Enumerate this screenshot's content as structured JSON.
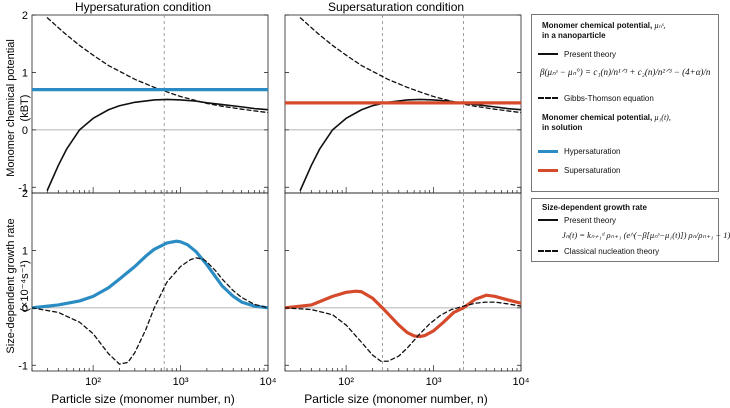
{
  "panels": {
    "top_left_title": "Hypersaturation condition",
    "top_right_title": "Supersaturation condition",
    "xlabel": "Particle size (monomer number, n)",
    "ylabel_top": "Monomer chemical potential",
    "ylabel_top_unit": "(kBT)",
    "ylabel_bottom": "Size-dependent growth rate",
    "ylabel_bottom_unit": "(×10⁻⁴s⁻¹)",
    "x_ticks": [
      "10²",
      "10³",
      "10⁴"
    ],
    "y_ticks": [
      "2",
      "1",
      "0",
      "-1"
    ]
  },
  "legend_top": {
    "header1": "Monomer chemical potential,",
    "header1_symbol": "μₙˢ,",
    "header1_line2": "in a nanoparticle",
    "item_present": "Present theory",
    "formula": "β(μₙˢ − μₙ°) = c₁(n)/n¹ᐟ³ + c₂(n)/n²ᐟ³ − (4+α)/n",
    "item_gibbs": "Gibbs-Thomson equation",
    "header2": "Monomer chemical potential,",
    "header2_symbol": "μ₁(t),",
    "header2_line2": "in solution",
    "item_hyper": "Hypersaturation",
    "item_super": "Supersaturation"
  },
  "legend_bottom": {
    "header": "Size-dependent growth rate",
    "item_present": "Present theory",
    "formula": "Jₙ(t) = kₙ₊₁ᵈ ρₙ₊₁ (e^(−β[μₙˢ−μ₁(t)]) ρₙ/ρₙ₊₁ − 1)",
    "item_classical": "Classical nucleation theory"
  },
  "colors": {
    "hyper": "#2b8cc4",
    "super": "#d64a2c",
    "curve": "#111111",
    "grid": "#888888"
  },
  "chart_data": [
    {
      "type": "line",
      "title": "Hypersaturation condition",
      "xscale": "log",
      "xlim": [
        20,
        10000
      ],
      "ylim": [
        -1.1,
        2
      ],
      "ylabel": "Monomer chemical potential (kBT)",
      "vlines": [
        650
      ],
      "series": [
        {
          "name": "Present theory",
          "style": "solid",
          "x": [
            30,
            40,
            50,
            70,
            100,
            150,
            200,
            300,
            500,
            700,
            1000,
            1500,
            2000,
            3000,
            5000,
            7000,
            10000
          ],
          "y": [
            -1.05,
            -0.62,
            -0.33,
            0.0,
            0.2,
            0.35,
            0.42,
            0.48,
            0.52,
            0.53,
            0.52,
            0.5,
            0.47,
            0.44,
            0.4,
            0.37,
            0.35
          ]
        },
        {
          "name": "Gibbs-Thomson equation",
          "style": "dashed",
          "x": [
            30,
            40,
            50,
            70,
            100,
            150,
            200,
            300,
            500,
            700,
            1000,
            1500,
            2000,
            3000,
            5000,
            7000,
            10000
          ],
          "y": [
            1.95,
            1.78,
            1.65,
            1.47,
            1.3,
            1.12,
            1.02,
            0.88,
            0.74,
            0.66,
            0.58,
            0.51,
            0.46,
            0.41,
            0.36,
            0.33,
            0.3
          ]
        },
        {
          "name": "Hypersaturation",
          "style": "solid-thick",
          "x": [
            20,
            10000
          ],
          "y": [
            0.7,
            0.7
          ]
        }
      ]
    },
    {
      "type": "line",
      "title": "Supersaturation condition",
      "xscale": "log",
      "xlim": [
        20,
        10000
      ],
      "ylim": [
        -1.1,
        2
      ],
      "vlines": [
        260,
        2200
      ],
      "series": [
        {
          "name": "Present theory",
          "style": "solid",
          "x": [
            30,
            40,
            50,
            70,
            100,
            150,
            200,
            300,
            500,
            700,
            1000,
            1500,
            2000,
            3000,
            5000,
            7000,
            10000
          ],
          "y": [
            -1.05,
            -0.62,
            -0.33,
            0.0,
            0.2,
            0.35,
            0.42,
            0.48,
            0.52,
            0.53,
            0.52,
            0.5,
            0.47,
            0.44,
            0.4,
            0.37,
            0.35
          ]
        },
        {
          "name": "Gibbs-Thomson equation",
          "style": "dashed",
          "x": [
            30,
            40,
            50,
            70,
            100,
            150,
            200,
            300,
            500,
            700,
            1000,
            1500,
            2000,
            3000,
            5000,
            7000,
            10000
          ],
          "y": [
            1.95,
            1.78,
            1.65,
            1.47,
            1.3,
            1.12,
            1.02,
            0.88,
            0.74,
            0.66,
            0.58,
            0.51,
            0.46,
            0.41,
            0.36,
            0.33,
            0.3
          ]
        },
        {
          "name": "Supersaturation",
          "style": "solid-thick",
          "x": [
            20,
            10000
          ],
          "y": [
            0.47,
            0.47
          ]
        }
      ]
    },
    {
      "type": "line",
      "xscale": "log",
      "xlim": [
        20,
        10000
      ],
      "ylim": [
        -1.1,
        2
      ],
      "ylabel": "Size-dependent growth rate (×10⁻⁴s⁻¹)",
      "xlabel": "Particle size (monomer number, n)",
      "vlines": [
        650
      ],
      "series": [
        {
          "name": "Hypersaturation",
          "style": "solid-thick",
          "x": [
            20,
            40,
            70,
            100,
            150,
            200,
            300,
            400,
            500,
            700,
            900,
            1000,
            1200,
            1500,
            2000,
            3000,
            4000,
            5000,
            7000,
            10000
          ],
          "y": [
            0.0,
            0.05,
            0.12,
            0.2,
            0.35,
            0.5,
            0.72,
            0.9,
            1.02,
            1.13,
            1.16,
            1.15,
            1.1,
            0.98,
            0.75,
            0.38,
            0.2,
            0.1,
            0.03,
            0.0
          ]
        },
        {
          "name": "Classical nucleation theory",
          "style": "dashed",
          "x": [
            20,
            40,
            70,
            100,
            150,
            200,
            250,
            300,
            400,
            500,
            700,
            1000,
            1300,
            1500,
            1800,
            2000,
            2500,
            3000,
            4000,
            5000,
            7000,
            10000
          ],
          "y": [
            0.0,
            -0.08,
            -0.25,
            -0.45,
            -0.8,
            -0.98,
            -0.95,
            -0.78,
            -0.38,
            0.0,
            0.45,
            0.72,
            0.84,
            0.87,
            0.85,
            0.8,
            0.65,
            0.5,
            0.3,
            0.18,
            0.06,
            0.0
          ]
        }
      ]
    },
    {
      "type": "line",
      "xscale": "log",
      "xlim": [
        20,
        10000
      ],
      "ylim": [
        -1.1,
        2
      ],
      "xlabel": "Particle size (monomer number, n)",
      "vlines": [
        260,
        2200
      ],
      "series": [
        {
          "name": "Supersaturation",
          "style": "solid-thick",
          "x": [
            20,
            40,
            70,
            100,
            130,
            150,
            200,
            260,
            300,
            400,
            500,
            600,
            700,
            800,
            1000,
            1300,
            1700,
            2200,
            3000,
            4000,
            5000,
            7000,
            10000
          ],
          "y": [
            0.0,
            0.05,
            0.2,
            0.27,
            0.29,
            0.28,
            0.17,
            0.0,
            -0.1,
            -0.3,
            -0.43,
            -0.49,
            -0.5,
            -0.48,
            -0.4,
            -0.25,
            -0.08,
            0.0,
            0.15,
            0.22,
            0.2,
            0.14,
            0.08
          ]
        },
        {
          "name": "Classical nucleation theory",
          "style": "dashed",
          "x": [
            20,
            40,
            70,
            100,
            150,
            200,
            250,
            300,
            400,
            500,
            700,
            900,
            1200,
            1600,
            2200,
            3000,
            4000,
            5000,
            7000,
            10000
          ],
          "y": [
            0.0,
            -0.03,
            -0.12,
            -0.3,
            -0.6,
            -0.82,
            -0.93,
            -0.93,
            -0.84,
            -0.7,
            -0.45,
            -0.28,
            -0.13,
            -0.03,
            0.03,
            0.08,
            0.1,
            0.1,
            0.07,
            0.03
          ]
        }
      ]
    }
  ]
}
